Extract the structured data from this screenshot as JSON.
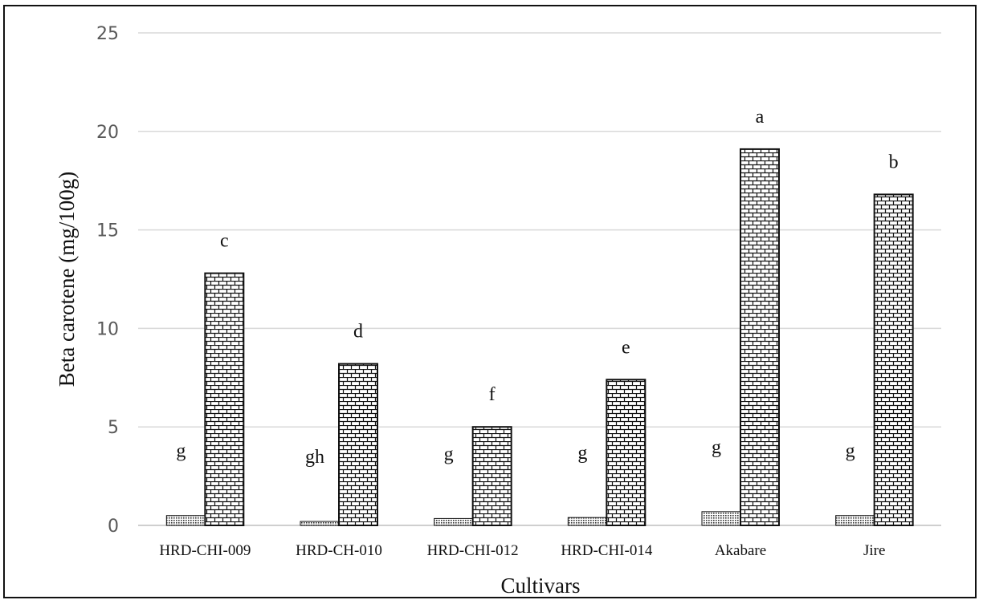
{
  "chart_data": {
    "type": "bar",
    "title": "",
    "xlabel": "Cultivars",
    "ylabel": "Beta carotene (mg/100g)",
    "ylim": [
      0,
      25
    ],
    "yticks": [
      "0",
      "5",
      "10",
      "15",
      "20",
      "25"
    ],
    "grid": true,
    "legend": "none",
    "categories": [
      "HRD-CHI-009",
      "HRD-CH-010",
      "HRD-CHI-012",
      "HRD-CHI-014",
      "Akabare",
      "Jire"
    ],
    "series": [
      {
        "values": [
          0.5,
          0.2,
          0.35,
          0.4,
          0.7,
          0.5
        ],
        "labels": [
          "g",
          "gh",
          "g",
          "g",
          "g",
          "g"
        ],
        "pattern": "dots"
      },
      {
        "values": [
          12.8,
          8.2,
          5.0,
          7.4,
          19.1,
          16.8
        ],
        "labels": [
          "c",
          "d",
          "f",
          "e",
          "a",
          "b"
        ],
        "pattern": "brick"
      }
    ],
    "colors": {
      "grid": "#d9d9d9",
      "axis": "#bfbfbf",
      "bar_stroke": "#111111"
    }
  }
}
